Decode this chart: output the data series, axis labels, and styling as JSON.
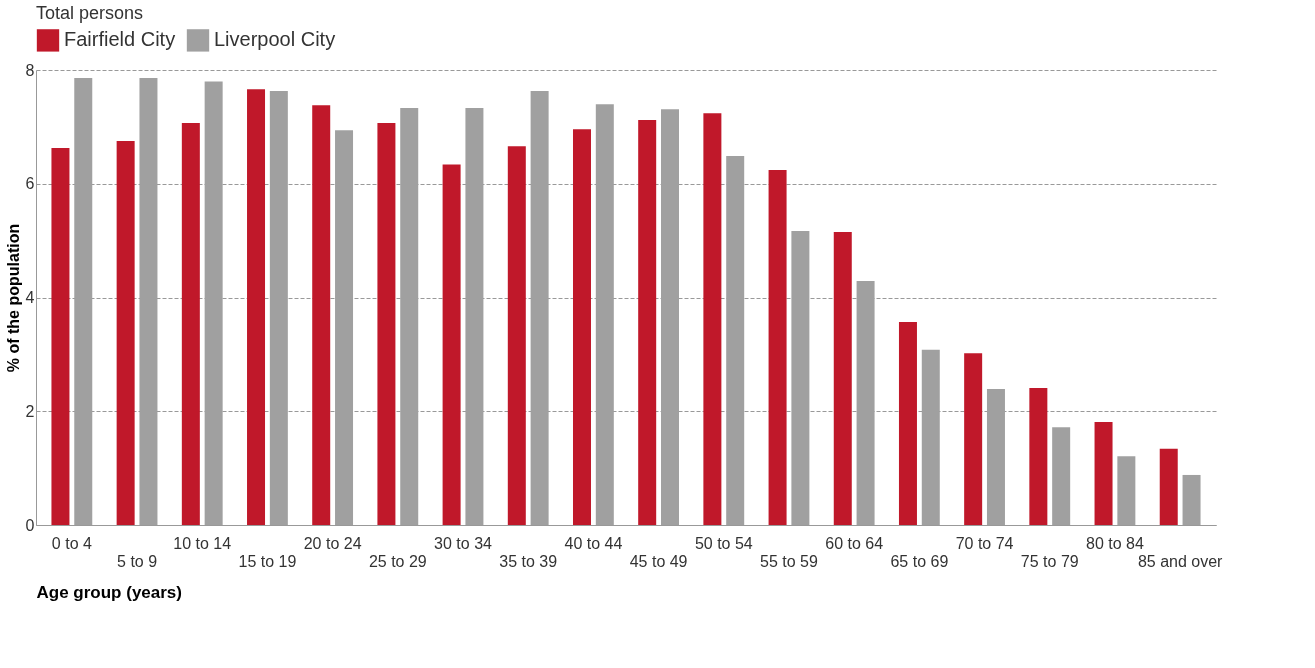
{
  "chart_data": {
    "type": "bar",
    "xlabel": "Age group (years)",
    "ylabel": "% of the population",
    "legend_title": "Total persons",
    "legend": "top left",
    "grid": "y",
    "ylim": [
      0,
      8
    ],
    "yticks": [
      0,
      2,
      4,
      6,
      8
    ],
    "categories": [
      "0 to 4",
      "5 to 9",
      "10 to 14",
      "15 to 19",
      "20 to 24",
      "25 to 29",
      "30 to 34",
      "35 to 39",
      "40 to 44",
      "45 to 49",
      "50 to 54",
      "55 to 59",
      "60 to 64",
      "65 to 69",
      "70 to 74",
      "75 to 79",
      "80 to 84",
      "85 and over"
    ],
    "series": [
      {
        "name": "Fairfield City",
        "color": "#c0182a",
        "values": [
          6.63,
          6.75,
          7.07,
          7.66,
          7.38,
          7.07,
          6.34,
          6.66,
          6.96,
          7.12,
          7.24,
          6.24,
          5.15,
          3.57,
          3.02,
          2.41,
          1.81,
          1.34
        ]
      },
      {
        "name": "Liverpool City",
        "color": "#a0a0a0",
        "values": [
          7.86,
          7.86,
          7.8,
          7.63,
          6.94,
          7.33,
          7.33,
          7.63,
          7.4,
          7.31,
          6.49,
          5.17,
          4.29,
          3.08,
          2.39,
          1.72,
          1.21,
          0.88
        ]
      }
    ]
  }
}
